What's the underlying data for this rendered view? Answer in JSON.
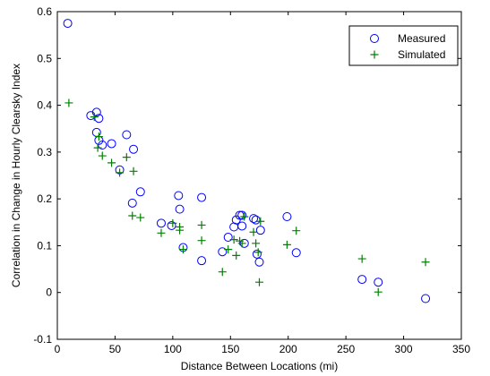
{
  "chart_data": {
    "type": "scatter",
    "title": "",
    "xlabel": "Distance Between Locations (mi)",
    "ylabel": "Correlation in Change in Hourly Clearsky Index",
    "xlim": [
      0,
      350
    ],
    "ylim": [
      -0.1,
      0.6
    ],
    "xticks": [
      0,
      50,
      100,
      150,
      200,
      250,
      300,
      350
    ],
    "xtick_labels": [
      "0",
      "50",
      "100",
      "150",
      "200",
      "250",
      "300",
      "350"
    ],
    "yticks": [
      -0.1,
      0,
      0.1,
      0.2,
      0.3,
      0.4,
      0.5,
      0.6
    ],
    "ytick_labels": [
      "-0.1",
      "0",
      "0.1",
      "0.2",
      "0.3",
      "0.4",
      "0.5",
      "0.6"
    ],
    "grid": false,
    "legend_position": "top-right",
    "series": [
      {
        "name": "Measured",
        "marker": "circle",
        "color": "#0000ff",
        "points": [
          [
            9,
            0.575
          ],
          [
            29,
            0.378
          ],
          [
            34,
            0.385
          ],
          [
            36,
            0.372
          ],
          [
            34,
            0.342
          ],
          [
            36,
            0.325
          ],
          [
            39,
            0.315
          ],
          [
            47,
            0.318
          ],
          [
            54,
            0.262
          ],
          [
            60,
            0.337
          ],
          [
            66,
            0.306
          ],
          [
            65,
            0.191
          ],
          [
            72,
            0.215
          ],
          [
            90,
            0.148
          ],
          [
            99,
            0.143
          ],
          [
            105,
            0.207
          ],
          [
            106,
            0.178
          ],
          [
            109,
            0.096
          ],
          [
            125,
            0.203
          ],
          [
            125,
            0.068
          ],
          [
            143,
            0.087
          ],
          [
            148,
            0.118
          ],
          [
            153,
            0.14
          ],
          [
            155,
            0.155
          ],
          [
            158,
            0.165
          ],
          [
            160,
            0.165
          ],
          [
            160,
            0.142
          ],
          [
            162,
            0.105
          ],
          [
            170,
            0.158
          ],
          [
            172,
            0.155
          ],
          [
            173,
            0.082
          ],
          [
            175,
            0.065
          ],
          [
            176,
            0.133
          ],
          [
            199,
            0.162
          ],
          [
            207,
            0.085
          ],
          [
            264,
            0.028
          ],
          [
            278,
            0.022
          ],
          [
            319,
            -0.013
          ]
        ]
      },
      {
        "name": "Simulated",
        "marker": "plus",
        "color": "#008000",
        "points": [
          [
            10,
            0.405
          ],
          [
            32,
            0.375
          ],
          [
            36,
            0.333
          ],
          [
            35,
            0.309
          ],
          [
            39,
            0.292
          ],
          [
            47,
            0.277
          ],
          [
            54,
            0.256
          ],
          [
            60,
            0.289
          ],
          [
            66,
            0.259
          ],
          [
            65,
            0.164
          ],
          [
            72,
            0.16
          ],
          [
            90,
            0.127
          ],
          [
            100,
            0.148
          ],
          [
            106,
            0.14
          ],
          [
            109,
            0.092
          ],
          [
            106,
            0.133
          ],
          [
            125,
            0.144
          ],
          [
            125,
            0.111
          ],
          [
            143,
            0.044
          ],
          [
            148,
            0.092
          ],
          [
            153,
            0.113
          ],
          [
            155,
            0.079
          ],
          [
            158,
            0.11
          ],
          [
            160,
            0.105
          ],
          [
            162,
            0.162
          ],
          [
            170,
            0.129
          ],
          [
            172,
            0.105
          ],
          [
            174,
            0.086
          ],
          [
            175,
            0.022
          ],
          [
            176,
            0.152
          ],
          [
            199,
            0.102
          ],
          [
            207,
            0.132
          ],
          [
            264,
            0.072
          ],
          [
            278,
            0.001
          ],
          [
            319,
            0.065
          ]
        ]
      }
    ]
  }
}
